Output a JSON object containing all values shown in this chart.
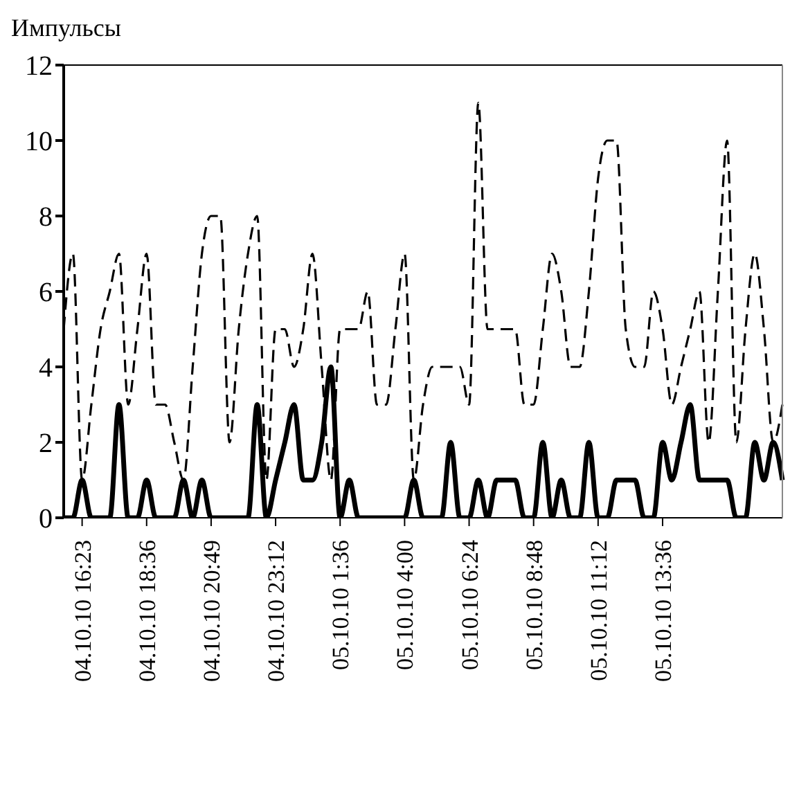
{
  "chart_data": {
    "type": "line",
    "ylabel": "Импульсы",
    "categories": [
      null,
      null,
      "04.10.10 16:23",
      null,
      null,
      null,
      null,
      null,
      null,
      "04.10.10 18:36",
      null,
      null,
      null,
      null,
      null,
      null,
      "04.10.10 20:49",
      null,
      null,
      null,
      null,
      null,
      null,
      "04.10.10 23:12",
      null,
      null,
      null,
      null,
      null,
      null,
      "05.10.10 1:36",
      null,
      null,
      null,
      null,
      null,
      null,
      "05.10.10 4:00",
      null,
      null,
      null,
      null,
      null,
      null,
      "05.10.10 6:24",
      null,
      null,
      null,
      null,
      null,
      null,
      "05.10.10 8:48",
      null,
      null,
      null,
      null,
      null,
      null,
      "05.10.10 11:12",
      null,
      null,
      null,
      null,
      null,
      null,
      "05.10.10 13:36",
      null,
      null,
      null,
      null,
      null,
      null,
      null,
      null,
      null,
      null,
      null,
      null,
      null
    ],
    "series": [
      {
        "color": "#000000",
        "line_style": "dashed",
        "values": [
          5,
          7,
          1,
          3,
          5,
          6,
          7,
          3,
          5,
          7,
          3,
          3,
          2,
          1,
          4,
          7,
          8,
          8,
          2,
          5,
          7,
          8,
          1,
          5,
          5,
          4,
          5,
          7,
          4,
          1,
          5,
          5,
          5,
          6,
          3,
          3,
          5,
          7,
          1,
          3,
          4,
          4,
          4,
          4,
          3,
          11,
          5,
          5,
          5,
          5,
          3,
          3,
          5,
          7,
          6,
          4,
          4,
          6,
          9,
          10,
          10,
          5,
          4,
          4,
          6,
          5,
          3,
          4,
          5,
          6,
          2,
          6,
          10,
          2,
          5,
          7,
          5,
          2,
          3
        ]
      },
      {
        "color": "#000000",
        "line_style": "solid",
        "values": [
          0,
          0,
          1,
          0,
          0,
          0,
          3,
          0,
          0,
          1,
          0,
          0,
          0,
          1,
          0,
          1,
          0,
          0,
          0,
          0,
          0,
          3,
          0,
          1,
          2,
          3,
          1,
          1,
          2,
          4,
          0,
          1,
          0,
          0,
          0,
          0,
          0,
          0,
          1,
          0,
          0,
          0,
          2,
          0,
          0,
          1,
          0,
          1,
          1,
          1,
          0,
          0,
          2,
          0,
          1,
          0,
          0,
          2,
          0,
          0,
          1,
          1,
          1,
          0,
          0,
          2,
          1,
          2,
          3,
          1,
          1,
          1,
          1,
          0,
          0,
          2,
          1,
          2,
          1
        ]
      }
    ],
    "ylim": [
      0,
      12
    ],
    "yticks": [
      0,
      2,
      4,
      6,
      8,
      10,
      12
    ],
    "grid": false,
    "marker": "none"
  }
}
